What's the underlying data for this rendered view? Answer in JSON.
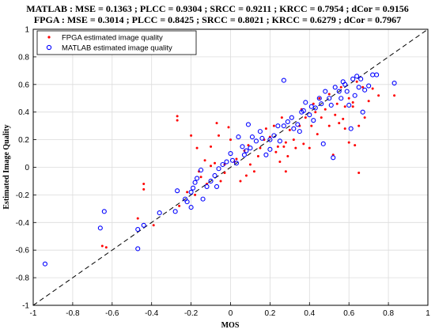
{
  "chart_data": {
    "type": "scatter",
    "title_lines": [
      "MATLAB : MSE = 0.1363 ; PLCC = 0.9304 ; SRCC = 0.9211 ; KRCC = 0.7954 ; dCor = 0.9156",
      "FPGA : MSE = 0.3014 ; PLCC = 0.8425 ; SRCC = 0.8021 ; KRCC = 0.6279 ; dCor = 0.7967"
    ],
    "xlabel": "MOS",
    "ylabel": "Estimated Image Quality",
    "xlim": [
      -1,
      1
    ],
    "ylim": [
      -1,
      1
    ],
    "xticks": [
      "-1",
      "-0.8",
      "-0.6",
      "-0.4",
      "-0.2",
      "0",
      "0.2",
      "0.4",
      "0.6",
      "0.8",
      "1"
    ],
    "yticks": [
      "-1",
      "-0.8",
      "-0.6",
      "-0.4",
      "-0.2",
      "0",
      "0.2",
      "0.4",
      "0.6",
      "0.8",
      "1"
    ],
    "grid": true,
    "legend_position": "top-left",
    "reference_line": {
      "from": [
        -1,
        -1
      ],
      "to": [
        1,
        1
      ],
      "style": "dashed",
      "color": "#000000"
    },
    "series": [
      {
        "name": "FPGA estimated image quality",
        "marker": "dot",
        "color": "#ff0000",
        "points": [
          [
            -0.65,
            -0.57
          ],
          [
            -0.63,
            -0.58
          ],
          [
            -0.47,
            -0.37
          ],
          [
            -0.44,
            -0.12
          ],
          [
            -0.44,
            -0.16
          ],
          [
            -0.39,
            -0.42
          ],
          [
            -0.27,
            0.37
          ],
          [
            -0.27,
            0.34
          ],
          [
            -0.26,
            -0.28
          ],
          [
            -0.22,
            -0.18
          ],
          [
            -0.2,
            0.23
          ],
          [
            -0.18,
            -0.2
          ],
          [
            -0.17,
            0.14
          ],
          [
            -0.16,
            -0.03
          ],
          [
            -0.15,
            -0.07
          ],
          [
            -0.13,
            0.05
          ],
          [
            -0.12,
            -0.12
          ],
          [
            -0.1,
            0.15
          ],
          [
            -0.1,
            0.01
          ],
          [
            -0.08,
            0.03
          ],
          [
            -0.07,
            0.32
          ],
          [
            -0.06,
            0.23
          ],
          [
            -0.05,
            -0.1
          ],
          [
            -0.03,
            0.02
          ],
          [
            -0.01,
            0.29
          ],
          [
            0.0,
            0.2
          ],
          [
            0.02,
            0.04
          ],
          [
            0.03,
            0.06
          ],
          [
            0.05,
            -0.1
          ],
          [
            0.07,
            0.12
          ],
          [
            0.08,
            -0.06
          ],
          [
            0.1,
            0.02
          ],
          [
            0.12,
            -0.03
          ],
          [
            0.14,
            0.08
          ],
          [
            0.15,
            0.14
          ],
          [
            0.17,
            0.2
          ],
          [
            0.2,
            0.22
          ],
          [
            0.22,
            0.3
          ],
          [
            0.23,
            0.11
          ],
          [
            0.24,
            0.15
          ],
          [
            0.25,
            0.04
          ],
          [
            0.26,
            0.36
          ],
          [
            0.28,
            0.18
          ],
          [
            0.28,
            -0.03
          ],
          [
            0.3,
            0.27
          ],
          [
            0.32,
            0.2
          ],
          [
            0.33,
            0.14
          ],
          [
            0.35,
            0.3
          ],
          [
            0.37,
            0.17
          ],
          [
            0.38,
            0.36
          ],
          [
            0.4,
            0.14
          ],
          [
            0.42,
            0.46
          ],
          [
            0.43,
            0.4
          ],
          [
            0.45,
            0.5
          ],
          [
            0.46,
            0.36
          ],
          [
            0.48,
            0.42
          ],
          [
            0.5,
            0.53
          ],
          [
            0.5,
            0.3
          ],
          [
            0.52,
            0.09
          ],
          [
            0.54,
            0.46
          ],
          [
            0.55,
            0.32
          ],
          [
            0.56,
            0.58
          ],
          [
            0.57,
            0.35
          ],
          [
            0.58,
            0.28
          ],
          [
            0.6,
            0.5
          ],
          [
            0.6,
            0.18
          ],
          [
            0.62,
            0.44
          ],
          [
            0.63,
            0.16
          ],
          [
            0.64,
            0.62
          ],
          [
            0.65,
            -0.04
          ],
          [
            0.65,
            0.3
          ],
          [
            0.67,
            0.58
          ],
          [
            0.68,
            0.36
          ],
          [
            0.7,
            0.48
          ],
          [
            0.72,
            0.57
          ],
          [
            0.75,
            0.52
          ],
          [
            0.83,
            0.52
          ],
          [
            0.27,
            0.15
          ],
          [
            0.18,
            0.28
          ],
          [
            0.09,
            0.16
          ],
          [
            0.36,
            0.42
          ],
          [
            -0.03,
            -0.04
          ],
          [
            0.44,
            0.24
          ],
          [
            0.62,
            0.47
          ],
          [
            0.58,
            0.44
          ],
          [
            0.41,
            0.3
          ],
          [
            0.29,
            0.08
          ],
          [
            0.53,
            0.38
          ]
        ]
      },
      {
        "name": "MATLAB estimated image quality",
        "marker": "circle",
        "color": "#0000ff",
        "points": [
          [
            -0.94,
            -0.7
          ],
          [
            -0.66,
            -0.44
          ],
          [
            -0.64,
            -0.32
          ],
          [
            -0.47,
            -0.59
          ],
          [
            -0.47,
            -0.45
          ],
          [
            -0.44,
            -0.42
          ],
          [
            -0.36,
            -0.33
          ],
          [
            -0.28,
            -0.32
          ],
          [
            -0.27,
            -0.17
          ],
          [
            -0.22,
            -0.25
          ],
          [
            -0.2,
            -0.29
          ],
          [
            -0.2,
            -0.18
          ],
          [
            -0.19,
            -0.15
          ],
          [
            -0.18,
            -0.11
          ],
          [
            -0.17,
            -0.08
          ],
          [
            -0.15,
            -0.02
          ],
          [
            -0.14,
            -0.23
          ],
          [
            -0.12,
            -0.14
          ],
          [
            -0.1,
            -0.1
          ],
          [
            -0.08,
            -0.06
          ],
          [
            -0.06,
            -0.01
          ],
          [
            -0.04,
            0.02
          ],
          [
            -0.02,
            0.04
          ],
          [
            0.0,
            0.1
          ],
          [
            0.01,
            0.05
          ],
          [
            0.03,
            0.03
          ],
          [
            0.04,
            0.22
          ],
          [
            0.06,
            0.15
          ],
          [
            0.08,
            0.12
          ],
          [
            0.1,
            0.14
          ],
          [
            0.11,
            0.22
          ],
          [
            0.13,
            0.19
          ],
          [
            0.15,
            0.26
          ],
          [
            0.16,
            0.21
          ],
          [
            0.18,
            0.09
          ],
          [
            0.2,
            0.2
          ],
          [
            0.22,
            0.23
          ],
          [
            0.24,
            0.3
          ],
          [
            0.25,
            0.19
          ],
          [
            0.27,
            0.63
          ],
          [
            0.27,
            0.3
          ],
          [
            0.29,
            0.33
          ],
          [
            0.31,
            0.36
          ],
          [
            0.32,
            0.28
          ],
          [
            0.34,
            0.31
          ],
          [
            0.36,
            0.4
          ],
          [
            0.37,
            0.41
          ],
          [
            0.38,
            0.47
          ],
          [
            0.4,
            0.38
          ],
          [
            0.41,
            0.44
          ],
          [
            0.43,
            0.43
          ],
          [
            0.45,
            0.5
          ],
          [
            0.46,
            0.46
          ],
          [
            0.48,
            0.55
          ],
          [
            0.5,
            0.5
          ],
          [
            0.51,
            0.45
          ],
          [
            0.52,
            0.07
          ],
          [
            0.53,
            0.58
          ],
          [
            0.55,
            0.55
          ],
          [
            0.56,
            0.5
          ],
          [
            0.58,
            0.6
          ],
          [
            0.59,
            0.55
          ],
          [
            0.6,
            0.45
          ],
          [
            0.61,
            0.28
          ],
          [
            0.62,
            0.64
          ],
          [
            0.63,
            0.52
          ],
          [
            0.64,
            0.66
          ],
          [
            0.65,
            0.58
          ],
          [
            0.66,
            0.64
          ],
          [
            0.67,
            0.4
          ],
          [
            0.68,
            0.56
          ],
          [
            0.7,
            0.59
          ],
          [
            0.72,
            0.67
          ],
          [
            0.74,
            0.67
          ],
          [
            0.83,
            0.61
          ],
          [
            0.47,
            0.17
          ],
          [
            0.35,
            0.26
          ],
          [
            0.07,
            0.09
          ],
          [
            -0.07,
            -0.14
          ],
          [
            0.2,
            0.13
          ],
          [
            -0.23,
            -0.23
          ],
          [
            0.09,
            0.31
          ],
          [
            0.42,
            0.34
          ],
          [
            0.57,
            0.62
          ]
        ]
      }
    ]
  }
}
